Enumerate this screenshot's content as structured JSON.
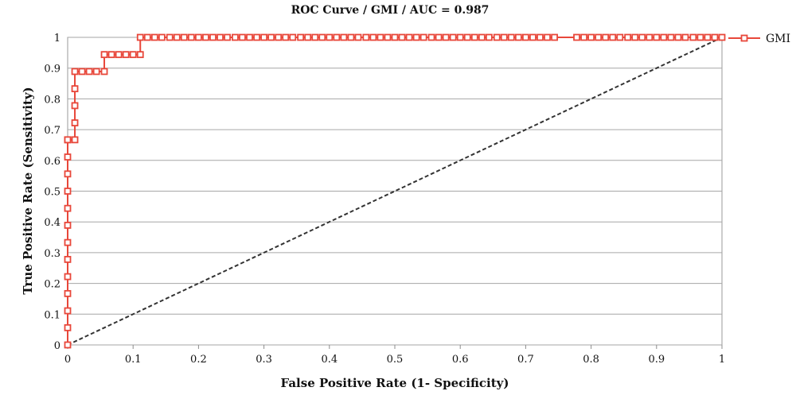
{
  "chart_data": {
    "type": "line",
    "title": "ROC Curve / GMI / AUC = 0.987",
    "xlabel": "False Positive Rate (1- Specificity)",
    "ylabel": "True Positive Rate (Sensitivity)",
    "xlim": [
      0,
      1
    ],
    "ylim": [
      0,
      1
    ],
    "x_ticks": [
      "0",
      "0.1",
      "0.2",
      "0.3",
      "0.4",
      "0.5",
      "0.6",
      "0.7",
      "0.8",
      "0.9",
      "1"
    ],
    "y_ticks": [
      "0",
      "0.1",
      "0.2",
      "0.3",
      "0.4",
      "0.5",
      "0.6",
      "0.7",
      "0.8",
      "0.9",
      "1"
    ],
    "grid": "horizontal",
    "legend_position": "right",
    "series": [
      {
        "name": "GMI",
        "color": "#e8473a",
        "marker": "open-square",
        "x": [
          0,
          0,
          0,
          0,
          0,
          0,
          0,
          0,
          0,
          0,
          0,
          0,
          0,
          0,
          0.011,
          0.011,
          0.011,
          0.011,
          0.011,
          0.022,
          0.033,
          0.044,
          0.056,
          0.056,
          0.067,
          0.078,
          0.089,
          0.1,
          0.111,
          0.111,
          0.122,
          0.133,
          0.144,
          0.156,
          0.167,
          0.178,
          0.189,
          0.2,
          0.211,
          0.222,
          0.233,
          0.244,
          0.256,
          0.267,
          0.278,
          0.289,
          0.3,
          0.311,
          0.322,
          0.333,
          0.344,
          0.356,
          0.367,
          0.378,
          0.389,
          0.4,
          0.411,
          0.422,
          0.433,
          0.444,
          0.456,
          0.467,
          0.478,
          0.489,
          0.5,
          0.511,
          0.522,
          0.533,
          0.544,
          0.556,
          0.567,
          0.578,
          0.589,
          0.6,
          0.611,
          0.622,
          0.633,
          0.644,
          0.656,
          0.667,
          0.678,
          0.689,
          0.7,
          0.711,
          0.722,
          0.733,
          0.744,
          0.778,
          0.789,
          0.8,
          0.811,
          0.822,
          0.833,
          0.844,
          0.856,
          0.867,
          0.878,
          0.889,
          0.9,
          0.911,
          0.922,
          0.933,
          0.944,
          0.956,
          0.967,
          0.978,
          0.989,
          1
        ],
        "y": [
          0,
          0.056,
          0.111,
          0.167,
          0.222,
          0.278,
          0.333,
          0.389,
          0.444,
          0.5,
          0.556,
          0.611,
          0.667,
          0.667,
          0.667,
          0.722,
          0.778,
          0.833,
          0.889,
          0.889,
          0.889,
          0.889,
          0.889,
          0.944,
          0.944,
          0.944,
          0.944,
          0.944,
          0.944,
          1,
          1,
          1,
          1,
          1,
          1,
          1,
          1,
          1,
          1,
          1,
          1,
          1,
          1,
          1,
          1,
          1,
          1,
          1,
          1,
          1,
          1,
          1,
          1,
          1,
          1,
          1,
          1,
          1,
          1,
          1,
          1,
          1,
          1,
          1,
          1,
          1,
          1,
          1,
          1,
          1,
          1,
          1,
          1,
          1,
          1,
          1,
          1,
          1,
          1,
          1,
          1,
          1,
          1,
          1,
          1,
          1,
          1,
          1,
          1,
          1,
          1,
          1,
          1,
          1,
          1,
          1,
          1,
          1,
          1,
          1,
          1,
          1,
          1,
          1,
          1,
          1,
          1,
          1
        ]
      }
    ],
    "reference_line": {
      "x": [
        0,
        1
      ],
      "y": [
        0,
        1
      ],
      "color": "#333333",
      "style": "dashed"
    }
  }
}
